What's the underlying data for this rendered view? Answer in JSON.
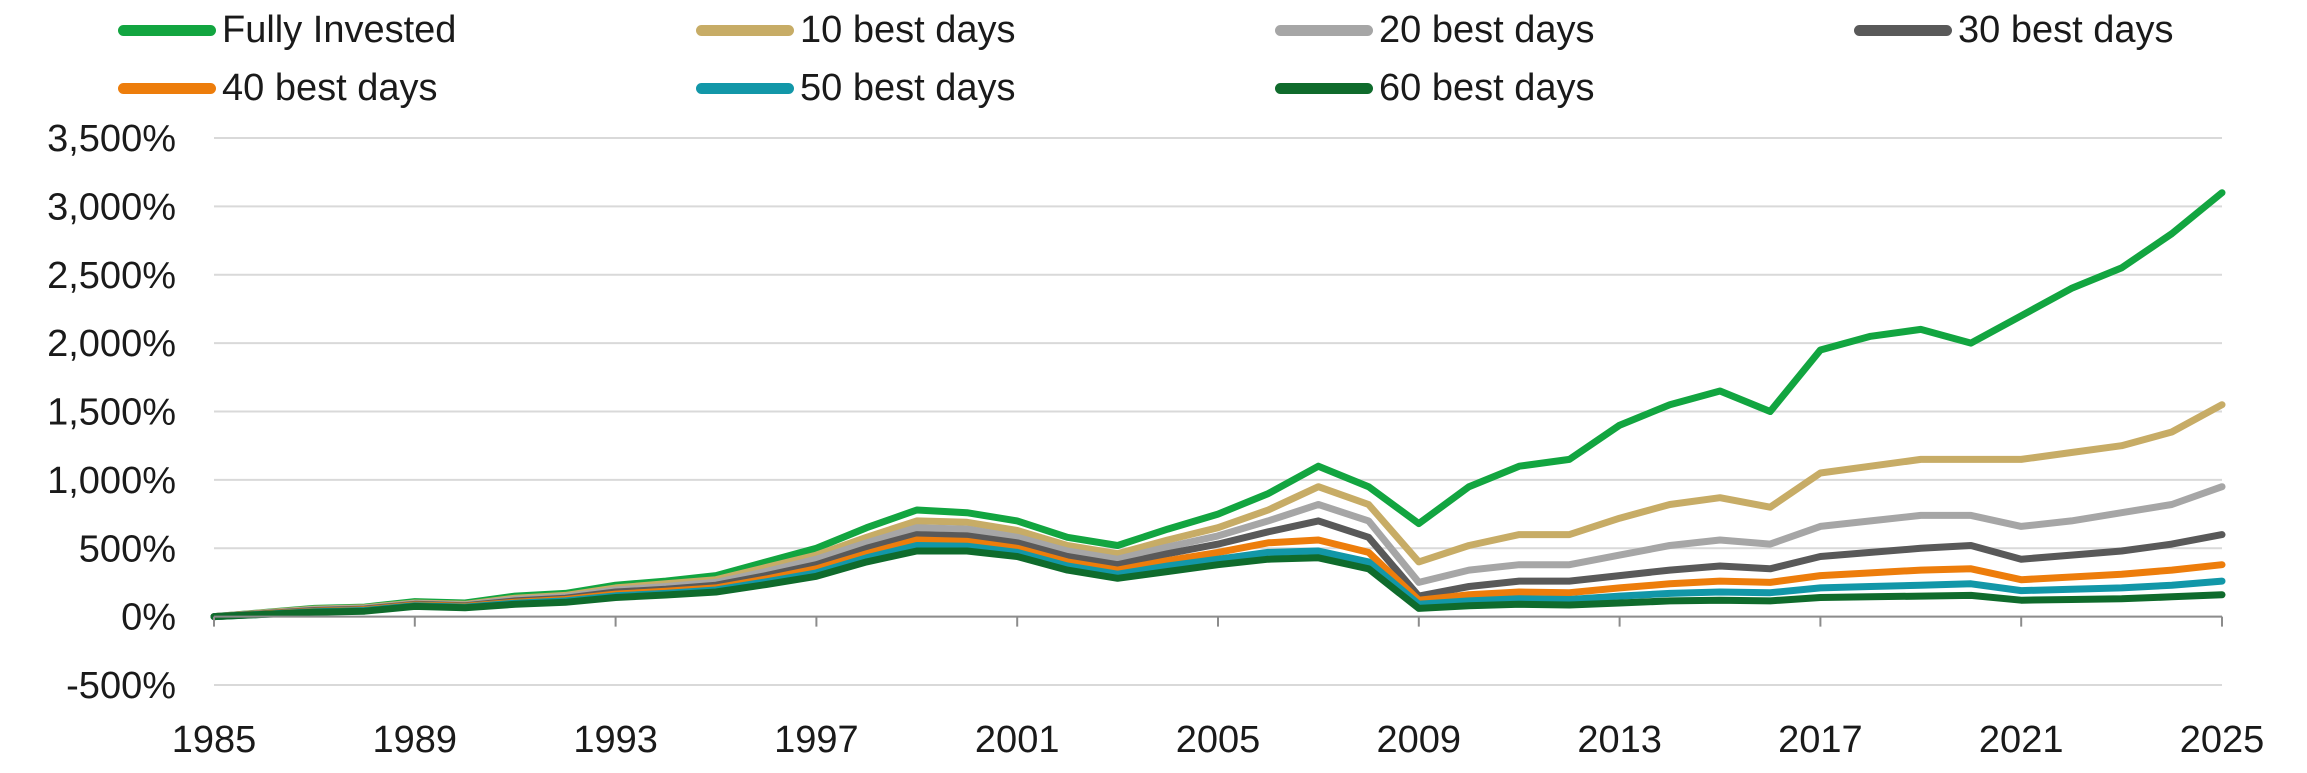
{
  "chart_data": {
    "type": "line",
    "title": "",
    "xlabel": "",
    "ylabel": "",
    "xlim": [
      1985,
      2025
    ],
    "ylim": [
      -500,
      3500
    ],
    "y_ticks": [
      -500,
      0,
      500,
      1000,
      1500,
      2000,
      2500,
      3000,
      3500
    ],
    "y_tick_labels": [
      "-500%",
      "0%",
      "500%",
      "1,000%",
      "1,500%",
      "2,000%",
      "2,500%",
      "3,000%",
      "3,500%"
    ],
    "x_ticks": [
      1985,
      1989,
      1993,
      1997,
      2001,
      2005,
      2009,
      2013,
      2017,
      2021,
      2025
    ],
    "x_tick_labels": [
      "1985",
      "1989",
      "1993",
      "1997",
      "2001",
      "2005",
      "2009",
      "2013",
      "2017",
      "2021",
      "2025"
    ],
    "grid": "horizontal",
    "legend_position": "top",
    "x": [
      1985,
      1986,
      1987,
      1988,
      1989,
      1990,
      1991,
      1992,
      1993,
      1994,
      1995,
      1996,
      1997,
      1998,
      1999,
      2000,
      2001,
      2002,
      2003,
      2004,
      2005,
      2006,
      2007,
      2008,
      2009,
      2010,
      2011,
      2012,
      2013,
      2014,
      2015,
      2016,
      2017,
      2018,
      2019,
      2020,
      2021,
      2022,
      2023,
      2024,
      2025
    ],
    "series": [
      {
        "name": "Fully Invested",
        "color": "#12a540",
        "values": [
          0,
          30,
          60,
          70,
          110,
          100,
          150,
          170,
          230,
          260,
          300,
          400,
          500,
          650,
          780,
          760,
          700,
          580,
          520,
          640,
          750,
          900,
          1100,
          950,
          680,
          950,
          1100,
          1150,
          1400,
          1550,
          1650,
          1500,
          1950,
          2050,
          2100,
          2000,
          2200,
          2400,
          2550,
          2800,
          3100
        ]
      },
      {
        "name": "10 best days",
        "color": "#c7ac66",
        "values": [
          0,
          28,
          55,
          65,
          100,
          90,
          135,
          155,
          210,
          240,
          270,
          360,
          450,
          580,
          700,
          690,
          630,
          520,
          460,
          560,
          650,
          780,
          950,
          820,
          400,
          520,
          600,
          600,
          720,
          820,
          870,
          800,
          1050,
          1100,
          1150,
          1150,
          1150,
          1200,
          1250,
          1350,
          1550
        ]
      },
      {
        "name": "20 best days",
        "color": "#a6a6a6",
        "values": [
          0,
          25,
          50,
          60,
          95,
          85,
          125,
          145,
          195,
          220,
          250,
          330,
          420,
          540,
          650,
          640,
          580,
          480,
          420,
          510,
          590,
          700,
          820,
          700,
          250,
          340,
          380,
          380,
          450,
          520,
          560,
          530,
          660,
          700,
          740,
          740,
          660,
          700,
          760,
          820,
          950
        ]
      },
      {
        "name": "30 best days",
        "color": "#595959",
        "values": [
          0,
          22,
          45,
          55,
          90,
          80,
          115,
          135,
          180,
          200,
          230,
          300,
          380,
          500,
          600,
          590,
          540,
          440,
          380,
          460,
          530,
          620,
          700,
          580,
          150,
          220,
          260,
          260,
          300,
          340,
          370,
          350,
          440,
          470,
          500,
          520,
          420,
          450,
          480,
          530,
          600
        ]
      },
      {
        "name": "40 best days",
        "color": "#ed7d0b",
        "values": [
          0,
          20,
          40,
          50,
          85,
          75,
          105,
          125,
          165,
          185,
          210,
          275,
          350,
          460,
          560,
          550,
          500,
          400,
          340,
          410,
          470,
          540,
          560,
          470,
          120,
          160,
          180,
          175,
          210,
          240,
          260,
          250,
          300,
          320,
          340,
          350,
          270,
          290,
          310,
          340,
          380
        ]
      },
      {
        "name": "50 best days",
        "color": "#1297a8",
        "values": [
          0,
          18,
          36,
          45,
          80,
          70,
          98,
          115,
          152,
          170,
          195,
          255,
          320,
          430,
          520,
          515,
          470,
          370,
          310,
          370,
          420,
          470,
          480,
          400,
          90,
          115,
          130,
          125,
          150,
          170,
          180,
          175,
          210,
          220,
          230,
          240,
          190,
          200,
          210,
          230,
          260
        ]
      },
      {
        "name": "60 best days",
        "color": "#0f6b2c",
        "values": [
          0,
          16,
          32,
          40,
          75,
          65,
          90,
          105,
          140,
          158,
          180,
          235,
          295,
          400,
          480,
          480,
          440,
          340,
          280,
          330,
          380,
          420,
          430,
          350,
          60,
          80,
          90,
          85,
          100,
          115,
          120,
          115,
          140,
          145,
          150,
          155,
          120,
          125,
          130,
          145,
          160
        ]
      }
    ]
  }
}
